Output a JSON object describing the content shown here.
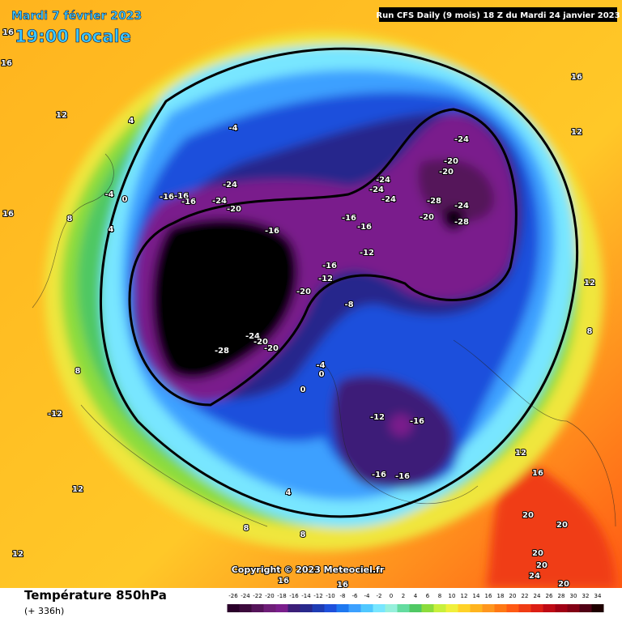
{
  "header": {
    "date": "Mardi 7 février 2023",
    "time": "19:00 locale",
    "run": "Run CFS Daily (9 mois) 18 Z du Mardi 24 janvier 2023"
  },
  "copyright": "Copyright © 2023 Meteociel.fr",
  "footer": {
    "title": "Température 850hPa",
    "lead": "(+ 336h)"
  },
  "legend": {
    "ticks": [
      -26,
      -24,
      -22,
      -20,
      -18,
      -16,
      -14,
      -12,
      -10,
      -8,
      -6,
      -4,
      -2,
      0,
      2,
      4,
      6,
      8,
      10,
      12,
      14,
      16,
      18,
      20,
      22,
      24,
      26,
      28,
      30,
      32,
      34
    ],
    "colors": [
      "#2a002a",
      "#3c0a3c",
      "#55145a",
      "#6e1e78",
      "#7a1e8c",
      "#3c1e78",
      "#28288c",
      "#1e3cb4",
      "#1e50dc",
      "#1e78f0",
      "#3ca0ff",
      "#50c8ff",
      "#78e6ff",
      "#96f0dc",
      "#64dca0",
      "#50c864",
      "#8cdc3c",
      "#c8f03c",
      "#f0f03c",
      "#ffd228",
      "#ffb41e",
      "#ff961e",
      "#ff7814",
      "#ff5a14",
      "#f03c14",
      "#dc1e14",
      "#be0a14",
      "#a00014",
      "#820014",
      "#500014",
      "#1e0000"
    ]
  },
  "map": {
    "labels": [
      16,
      16,
      12,
      4,
      -4,
      16,
      12,
      -24,
      -20,
      -20,
      -24,
      -24,
      -24,
      -28,
      -24,
      -28,
      -20,
      -16,
      -16,
      -16,
      -24,
      -24,
      -20,
      -4,
      0,
      16,
      8,
      4,
      -16,
      -16,
      -16,
      -12,
      -16,
      -12,
      -20,
      -8,
      12,
      8,
      -24,
      -20,
      -20,
      -28,
      -4,
      0,
      0,
      8,
      -12,
      -12,
      -16,
      12,
      16,
      12,
      4,
      -16,
      -16,
      8,
      8,
      20,
      20,
      20,
      20,
      24,
      20,
      16,
      16,
      12
    ]
  }
}
